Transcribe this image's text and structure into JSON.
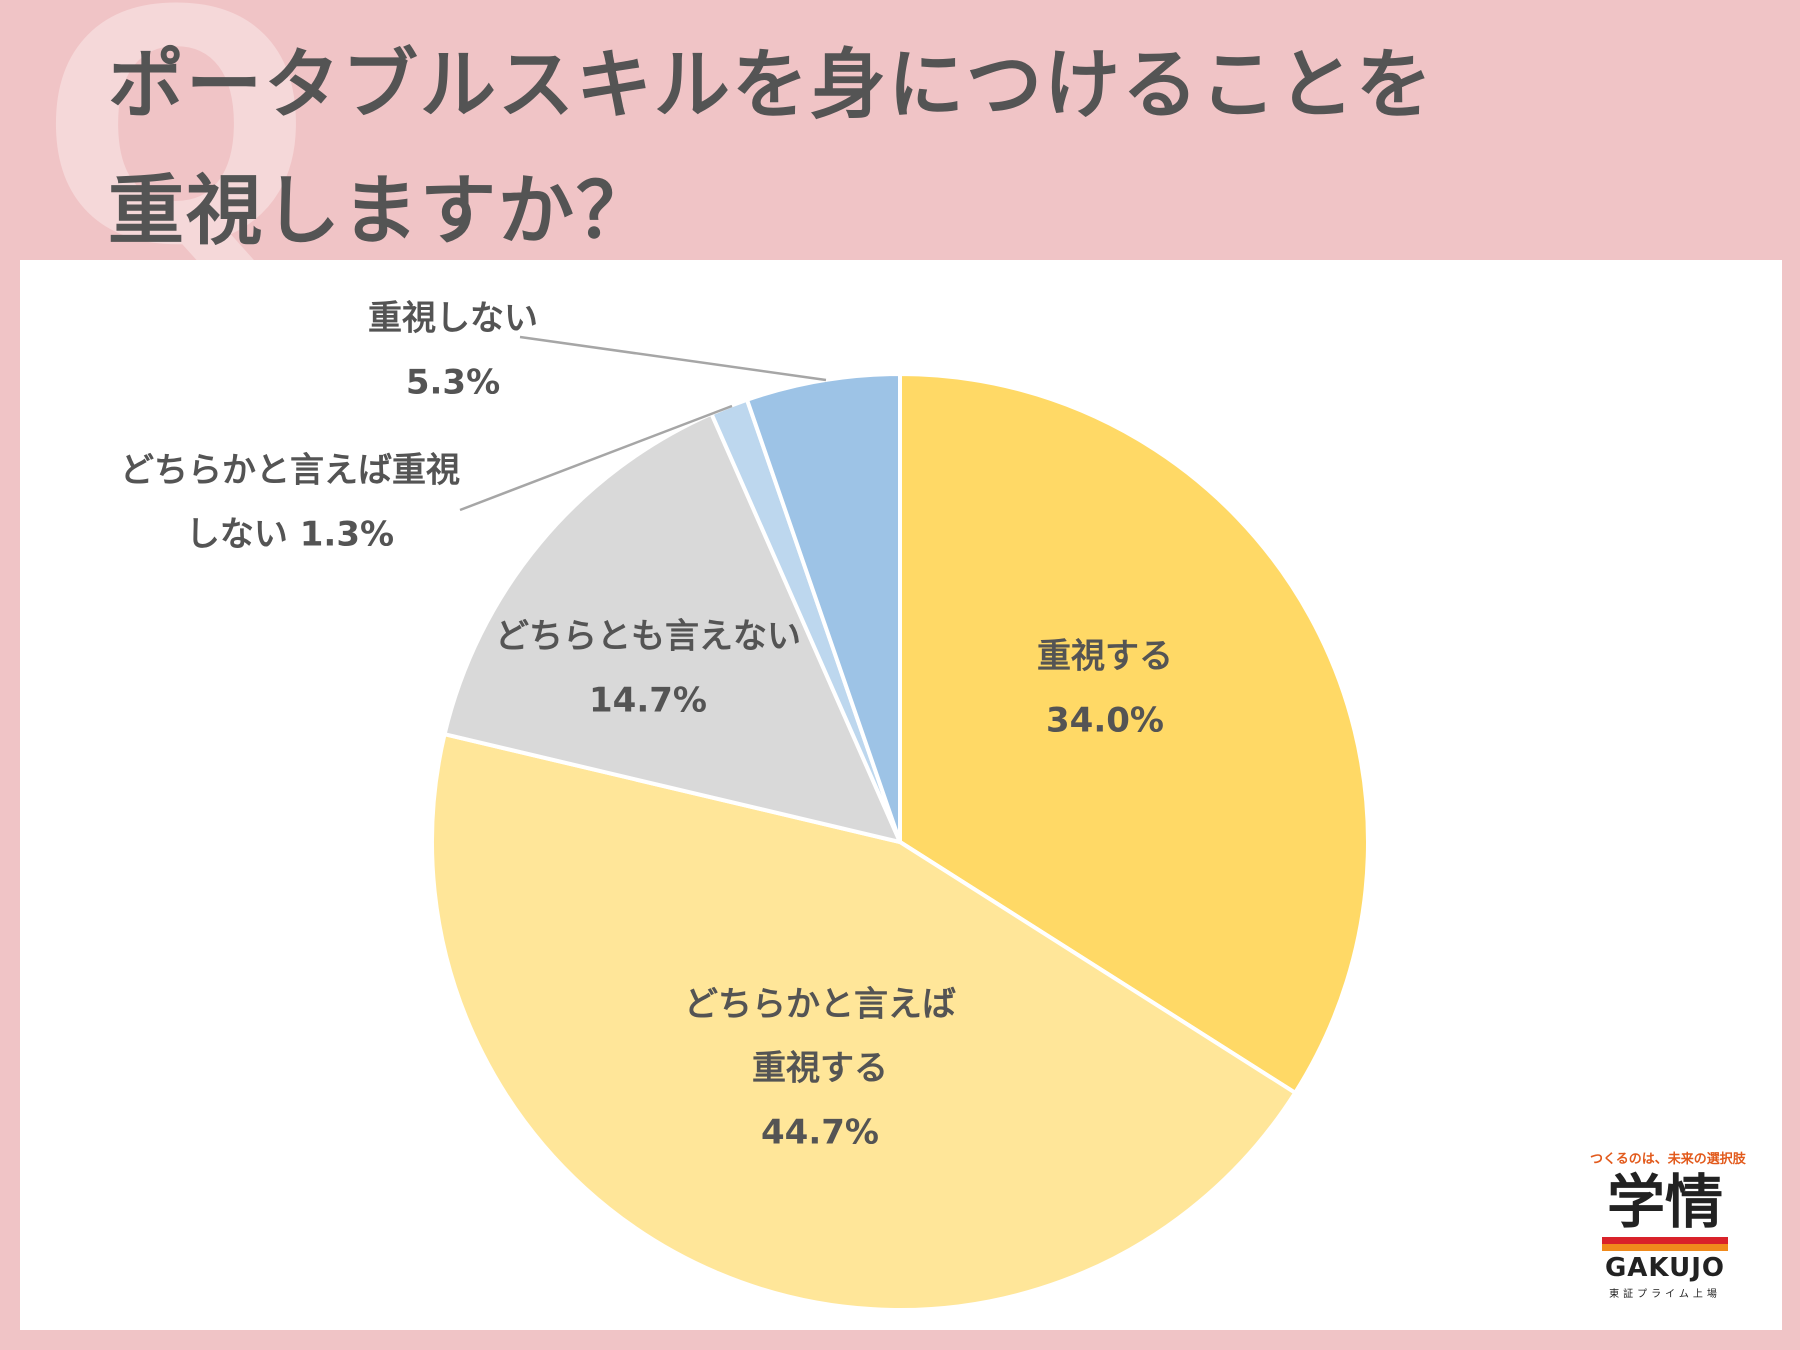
{
  "page": {
    "title": "ポータブルスキルを身につけることを\n重視しますか？",
    "bg_color": "#f0c4c6",
    "q_mark": "Q"
  },
  "chart_data": {
    "type": "pie",
    "start_angle_deg": 0,
    "direction": "clockwise",
    "slices": [
      {
        "label": "重視する",
        "value": 34.0,
        "value_label": "34.0%",
        "color": "#ffd966",
        "label_placement": "inside"
      },
      {
        "label": "どちらかと言えば重視する",
        "label_lines": [
          "どちらかと言えば",
          "重視する"
        ],
        "value": 44.7,
        "value_label": "44.7%",
        "color": "#ffe699",
        "label_placement": "inside"
      },
      {
        "label": "どちらとも言えない",
        "value": 14.7,
        "value_label": "14.7%",
        "color": "#d9d9d9",
        "label_placement": "inside"
      },
      {
        "label": "どちらかと言えば重視しない",
        "label_lines": [
          "どちらかと言えば重視",
          "しない 1.3%"
        ],
        "value": 1.3,
        "value_label": "1.3%",
        "color": "#bdd7ee",
        "label_placement": "outside"
      },
      {
        "label": "重視しない",
        "label_lines": [
          "重視しない",
          "5.3%"
        ],
        "value": 5.3,
        "value_label": "5.3%",
        "color": "#9dc3e6",
        "label_placement": "outside"
      }
    ]
  },
  "logo": {
    "tagline": "つくるのは、未来の選択肢",
    "name_kanji": "学情",
    "name_en": "GAKUJO",
    "subtitle": "東証プライム上場"
  }
}
